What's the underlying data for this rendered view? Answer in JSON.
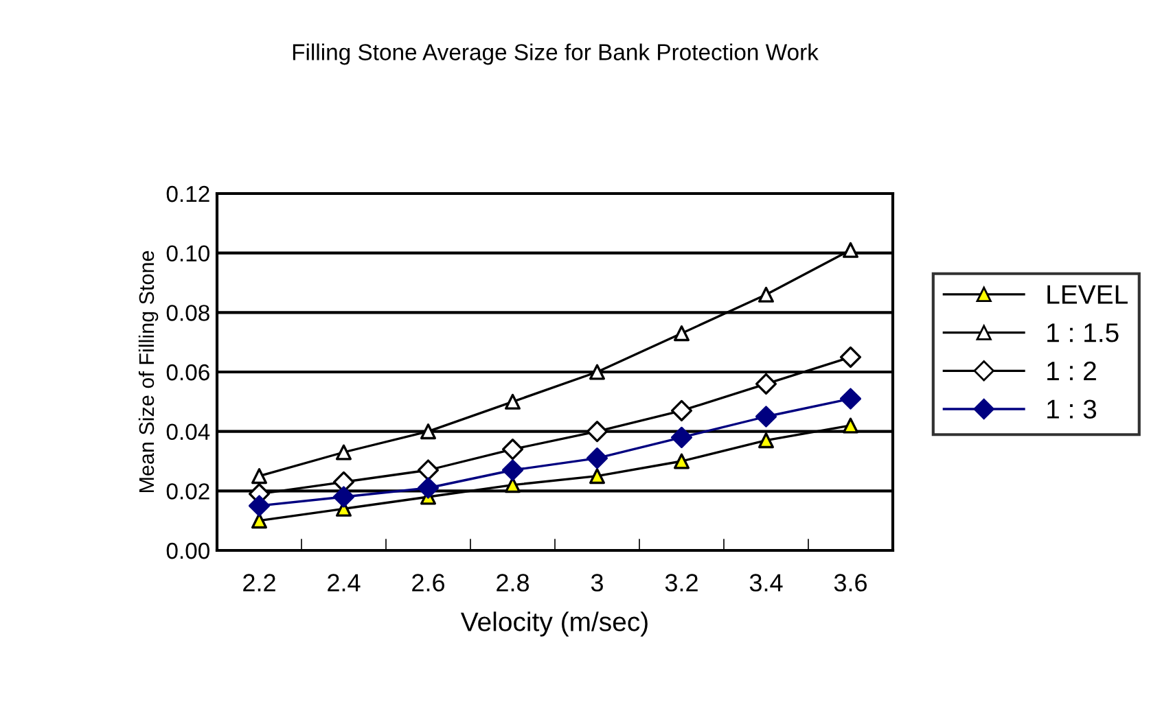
{
  "chart_data": {
    "type": "line",
    "title": "Filling Stone Average Size for Bank Protection Work",
    "xlabel": "Velocity (m/sec)",
    "ylabel": "Mean Size of Filling Stone",
    "categories": [
      "2.2",
      "2.4",
      "2.6",
      "2.8",
      "3",
      "3.2",
      "3.4",
      "3.6"
    ],
    "series": [
      {
        "name": "LEVEL",
        "color": "#000000",
        "colors": [
          "#ffff00",
          "#ffff00",
          "#ffff00",
          "#ffff00",
          "#ffff00",
          "#ffff00",
          "#ffff00",
          "#ffff00"
        ],
        "marker": "triangle",
        "values": [
          0.01,
          0.014,
          0.018,
          0.022,
          0.025,
          0.03,
          0.037,
          0.042
        ]
      },
      {
        "name": "1 : 1.5",
        "color": "#000000",
        "colors": [
          "#ffffff",
          "#ffffff",
          "#ffffff",
          "#ffffff",
          "#ffffff",
          "#ffffff",
          "#ffffff",
          "#ffffff"
        ],
        "marker": "triangle",
        "values": [
          0.025,
          0.033,
          0.04,
          0.05,
          0.06,
          0.073,
          0.086,
          0.101
        ]
      },
      {
        "name": "1 : 2",
        "color": "#000000",
        "colors": [
          "#ffffff",
          "#ffffff",
          "#ffffff",
          "#ffffff",
          "#ffffff",
          "#ffffff",
          "#ffffff",
          "#ffffff"
        ],
        "marker": "diamond",
        "values": [
          0.019,
          0.023,
          0.027,
          0.034,
          0.04,
          0.047,
          0.056,
          0.065
        ]
      },
      {
        "name": "1 : 3",
        "color": "#000080",
        "marker": "diamond",
        "values": [
          0.015,
          0.018,
          0.021,
          0.027,
          0.031,
          0.038,
          0.045,
          0.051
        ]
      }
    ],
    "ylim": [
      0,
      0.12
    ],
    "yticks": [
      {
        "value": 0,
        "label": "0.00"
      },
      {
        "value": 0.02,
        "label": "0.02"
      },
      {
        "value": 0.04,
        "label": "0.04"
      },
      {
        "value": 0.06,
        "label": "0.06"
      },
      {
        "value": 0.08,
        "label": "0.08"
      },
      {
        "value": 0.1,
        "label": "0.10"
      },
      {
        "value": 0.12,
        "label": "0.12"
      }
    ],
    "grid": "y",
    "legend": "right"
  }
}
